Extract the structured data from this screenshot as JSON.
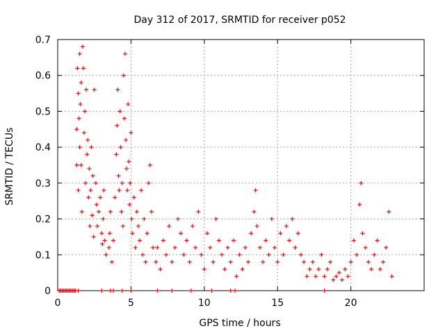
{
  "chart_data": {
    "type": "scatter",
    "title": "Day 312 of 2017, SRMTID for receiver p052",
    "xlabel": "GPS time / hours",
    "ylabel": "SRMTID / TECUs",
    "xlim": [
      0,
      25
    ],
    "ylim": [
      0,
      0.7
    ],
    "xticks": [
      0,
      5,
      10,
      15,
      20
    ],
    "yticks": [
      0,
      0.1,
      0.2,
      0.3,
      0.4,
      0.5,
      0.6,
      0.7
    ],
    "grid": true,
    "marker": "+",
    "series": [
      {
        "name": "SRMTID",
        "color": "#ff0000",
        "x": [
          0.1,
          0.2,
          0.3,
          0.4,
          0.5,
          0.6,
          0.7,
          0.8,
          0.9,
          1.0,
          1.1,
          1.2,
          1.3,
          1.3,
          1.35,
          1.4,
          1.4,
          1.45,
          1.5,
          1.5,
          1.55,
          1.6,
          1.6,
          1.65,
          1.7,
          1.75,
          1.8,
          1.85,
          1.9,
          1.95,
          2.0,
          2.05,
          2.1,
          2.15,
          2.2,
          2.25,
          2.3,
          2.35,
          2.4,
          2.45,
          2.5,
          2.6,
          2.65,
          2.7,
          2.8,
          2.9,
          3.0,
          3.05,
          3.1,
          3.15,
          3.2,
          3.3,
          3.5,
          3.55,
          3.6,
          3.7,
          3.8,
          3.9,
          4.0,
          4.05,
          4.1,
          4.15,
          4.2,
          4.25,
          4.3,
          4.35,
          4.4,
          4.45,
          4.5,
          4.55,
          4.6,
          4.65,
          4.7,
          4.75,
          4.8,
          4.85,
          4.9,
          4.95,
          5.0,
          5.05,
          5.1,
          5.2,
          5.3,
          5.4,
          5.5,
          5.6,
          5.7,
          5.8,
          5.9,
          6.0,
          6.1,
          6.2,
          6.3,
          6.4,
          6.5,
          6.7,
          6.8,
          7.0,
          7.2,
          7.4,
          7.6,
          7.8,
          8.0,
          8.2,
          8.4,
          8.6,
          8.8,
          9.0,
          9.2,
          9.4,
          9.6,
          9.8,
          10.0,
          10.2,
          10.4,
          10.6,
          10.8,
          11.0,
          11.2,
          11.4,
          11.6,
          11.8,
          12.0,
          12.2,
          12.4,
          12.6,
          12.8,
          13.0,
          13.2,
          13.4,
          13.5,
          13.6,
          13.8,
          14.0,
          14.2,
          14.4,
          14.6,
          14.8,
          15.0,
          15.2,
          15.4,
          15.6,
          15.8,
          16.0,
          16.2,
          16.4,
          16.6,
          16.8,
          17.0,
          17.2,
          17.4,
          17.6,
          17.8,
          18.0,
          18.2,
          18.4,
          18.6,
          18.8,
          19.0,
          19.2,
          19.4,
          19.6,
          19.8,
          20.0,
          20.2,
          20.4,
          20.6,
          20.7,
          20.8,
          21.0,
          21.2,
          21.4,
          21.6,
          21.8,
          22.0,
          22.2,
          22.4,
          22.6,
          22.8,
          0.2,
          0.5,
          0.8,
          1.0,
          1.2,
          1.4,
          3.0,
          3.6,
          3.8,
          4.4,
          5.0,
          6.8,
          7.8,
          9.1,
          10.5,
          11.8,
          12.1,
          18.2
        ],
        "y": [
          0,
          0,
          0,
          0,
          0,
          0,
          0,
          0,
          0,
          0,
          0,
          0,
          0.35,
          0.45,
          0.62,
          0.55,
          0.28,
          0.48,
          0.4,
          0.66,
          0.52,
          0.35,
          0.58,
          0.22,
          0.68,
          0.62,
          0.44,
          0.5,
          0.3,
          0.56,
          0.38,
          0.42,
          0.26,
          0.34,
          0.18,
          0.28,
          0.4,
          0.21,
          0.32,
          0.15,
          0.56,
          0.3,
          0.24,
          0.18,
          0.22,
          0.26,
          0.16,
          0.13,
          0.2,
          0.28,
          0.14,
          0.1,
          0.12,
          0.16,
          0.22,
          0.08,
          0.14,
          0.26,
          0.38,
          0.46,
          0.56,
          0.32,
          0.28,
          0.5,
          0.4,
          0.22,
          0.3,
          0.18,
          0.6,
          0.48,
          0.66,
          0.42,
          0.34,
          0.28,
          0.52,
          0.36,
          0.24,
          0.3,
          0.44,
          0.2,
          0.16,
          0.26,
          0.12,
          0.22,
          0.18,
          0.14,
          0.28,
          0.1,
          0.2,
          0.08,
          0.16,
          0.3,
          0.35,
          0.22,
          0.12,
          0.08,
          0.12,
          0.06,
          0.14,
          0.1,
          0.18,
          0.08,
          0.12,
          0.2,
          0.16,
          0.1,
          0.14,
          0.08,
          0.18,
          0.12,
          0.22,
          0.1,
          0.06,
          0.16,
          0.12,
          0.08,
          0.2,
          0.14,
          0.1,
          0.06,
          0.12,
          0.08,
          0.14,
          0.04,
          0.1,
          0.06,
          0.12,
          0.08,
          0.16,
          0.22,
          0.28,
          0.18,
          0.12,
          0.08,
          0.14,
          0.1,
          0.2,
          0.12,
          0.08,
          0.16,
          0.1,
          0.18,
          0.14,
          0.2,
          0.12,
          0.16,
          0.1,
          0.08,
          0.04,
          0.06,
          0.08,
          0.04,
          0.06,
          0.1,
          0.04,
          0.06,
          0.08,
          0.03,
          0.04,
          0.05,
          0.03,
          0.06,
          0.04,
          0.08,
          0.14,
          0.1,
          0.24,
          0.3,
          0.16,
          0.12,
          0.08,
          0.06,
          0.1,
          0.14,
          0.06,
          0.08,
          0.12,
          0.22,
          0.04,
          0,
          0,
          0,
          0,
          0,
          0,
          0,
          0,
          0,
          0,
          0,
          0,
          0,
          0,
          0,
          0,
          0,
          0
        ]
      }
    ]
  }
}
